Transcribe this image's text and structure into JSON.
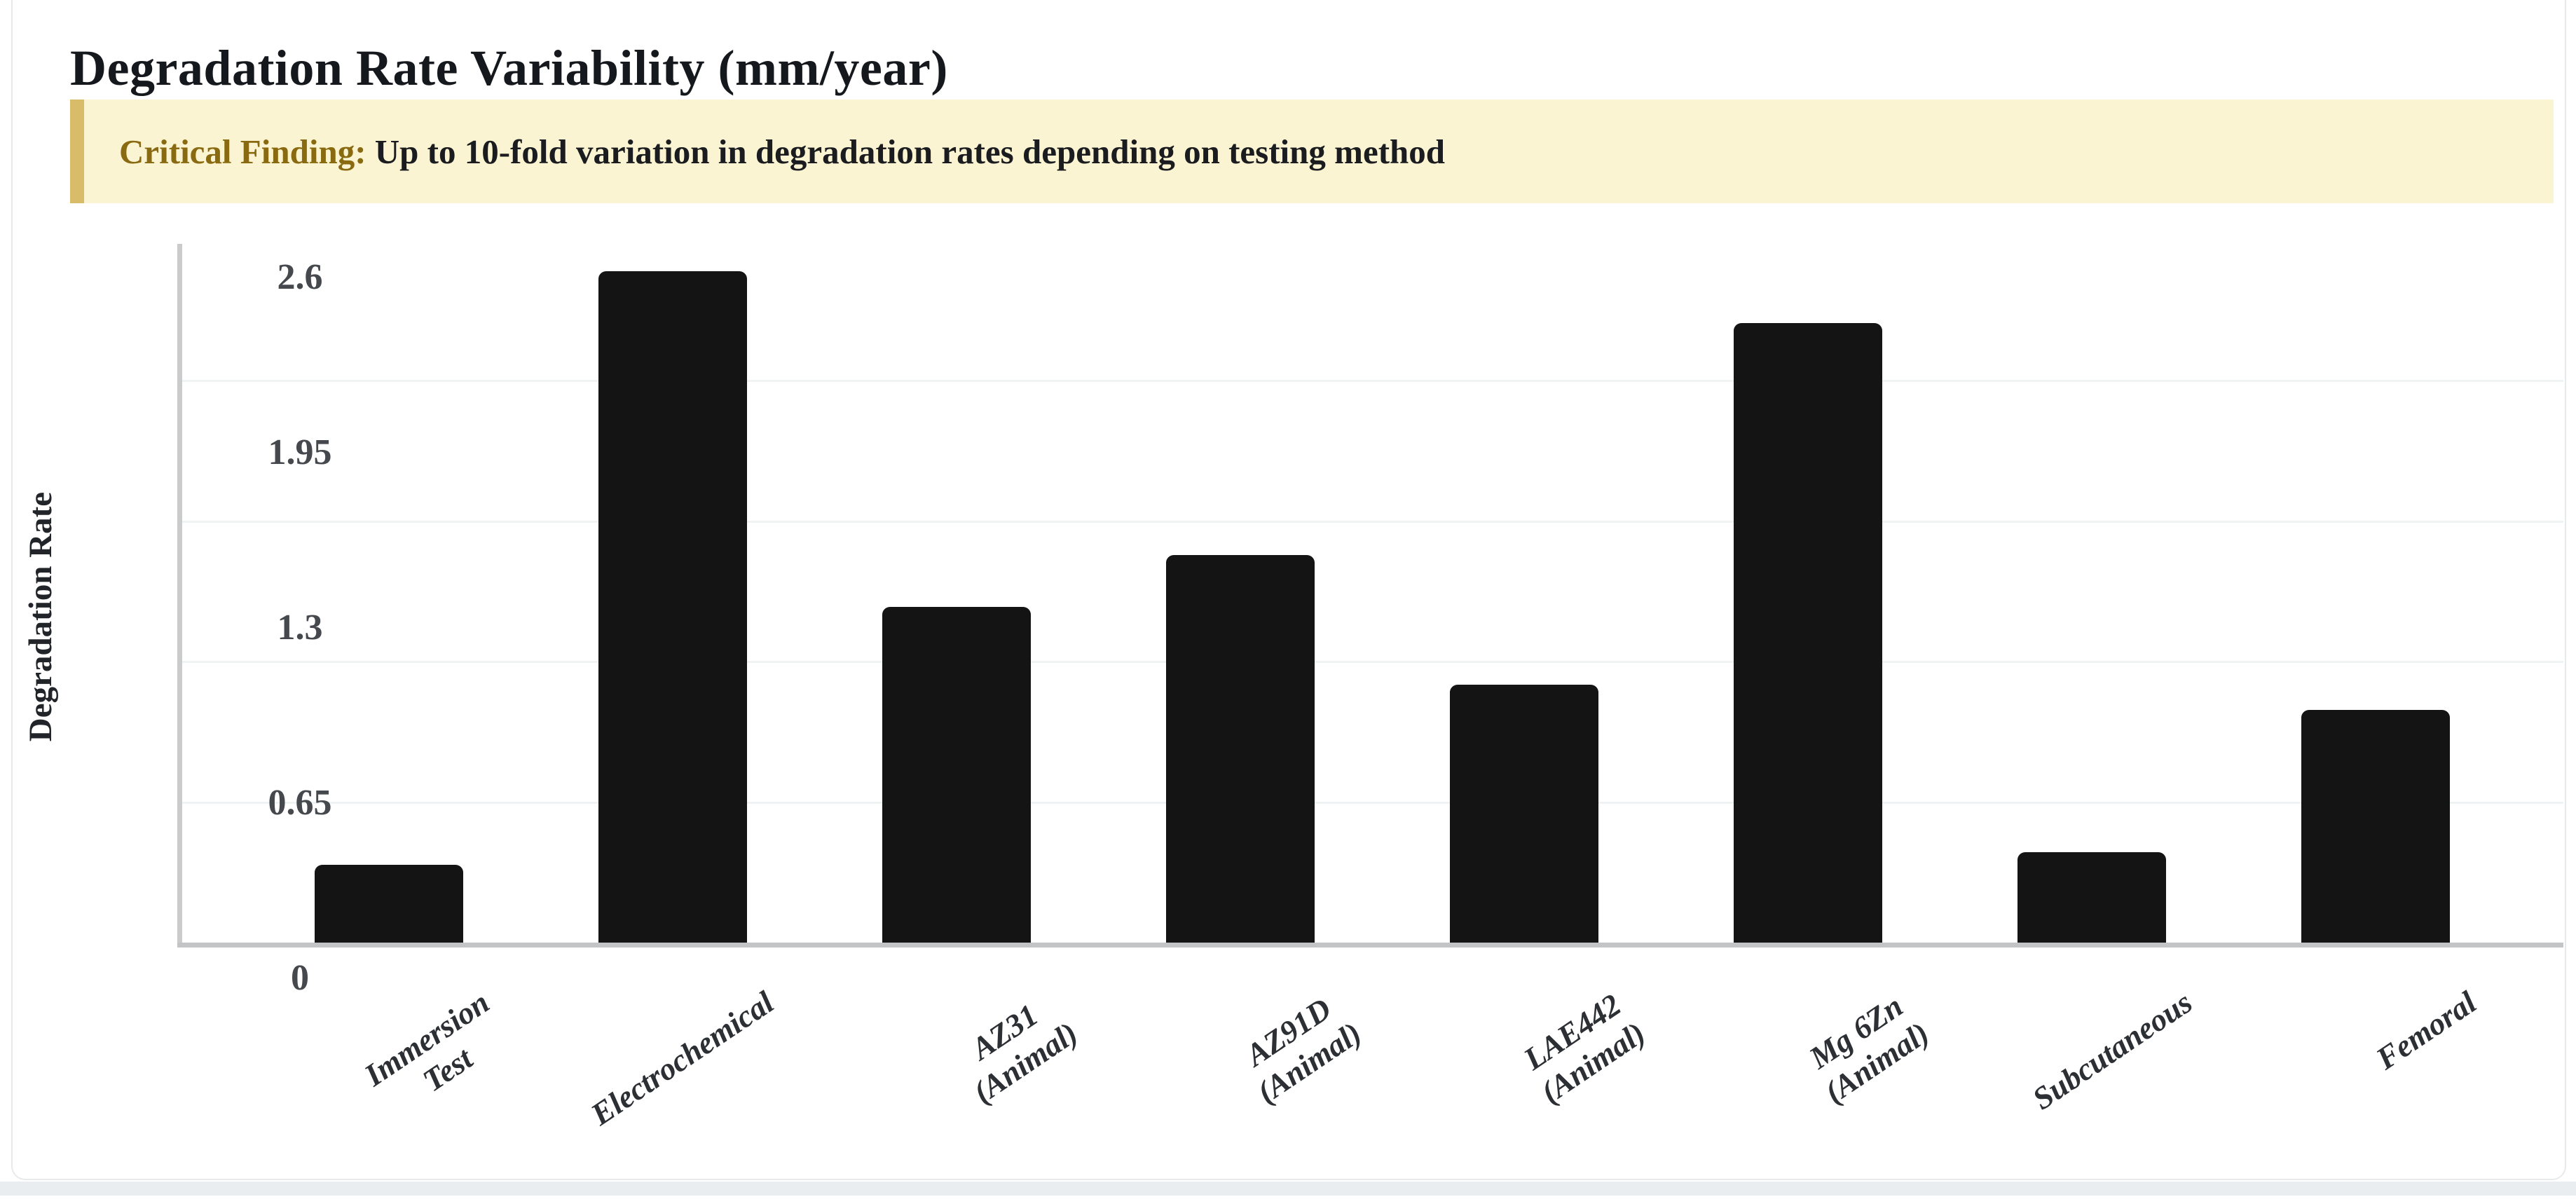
{
  "page": {
    "title": "Degradation Rate Variability (mm/year)"
  },
  "callout": {
    "label": "Critical Finding:",
    "text": " Up to 10-fold variation in degradation rates depending on testing method"
  },
  "chart_data": {
    "type": "bar",
    "title": "Degradation Rate Variability (mm/year)",
    "xlabel": "",
    "ylabel": "Degradation Rate",
    "categories": [
      "Immersion Test",
      "Electrochemical",
      "AZ31 (Animal)",
      "AZ91D (Animal)",
      "LAE442 (Animal)",
      "Mg 6Zn (Animal)",
      "Subcutaneous",
      "Femoral"
    ],
    "values": [
      0.3,
      2.6,
      1.3,
      1.5,
      1.0,
      2.4,
      0.35,
      0.9
    ],
    "bars": [
      {
        "label": "Immersion Test",
        "lines": [
          "Immersion",
          "Test"
        ],
        "value": 0.3
      },
      {
        "label": "Electrochemical",
        "lines": [
          "Electrochemical"
        ],
        "value": 2.6
      },
      {
        "label": "AZ31 (Animal)",
        "lines": [
          "AZ31",
          "(Animal)"
        ],
        "value": 1.3
      },
      {
        "label": "AZ91D (Animal)",
        "lines": [
          "AZ91D",
          "(Animal)"
        ],
        "value": 1.5
      },
      {
        "label": "LAE442 (Animal)",
        "lines": [
          "LAE442",
          "(Animal)"
        ],
        "value": 1.0
      },
      {
        "label": "Mg 6Zn (Animal)",
        "lines": [
          "Mg 6Zn",
          "(Animal)"
        ],
        "value": 2.4
      },
      {
        "label": "Subcutaneous",
        "lines": [
          "Subcutaneous"
        ],
        "value": 0.35
      },
      {
        "label": "Femoral",
        "lines": [
          "Femoral"
        ],
        "value": 0.9
      }
    ],
    "yticks": [
      0,
      0.65,
      1.3,
      1.95,
      2.6
    ],
    "ytick_labels_top_to_bottom": [
      "2.6",
      "1.95",
      "1.3",
      "0.65",
      "0"
    ],
    "ylim": [
      0,
      2.6
    ],
    "grid": true,
    "legend": false
  },
  "colors": {
    "bar": "#141414",
    "callout_background": "#fbf4d2",
    "callout_border": "#d9bc6a",
    "callout_heading": "#8a6a10",
    "title_text": "#15181c",
    "axis_line": "#c6c8ca",
    "gridline": "#f0f3f4",
    "tick_text": "#45484c",
    "bottom_strip": "#e9edf0"
  }
}
